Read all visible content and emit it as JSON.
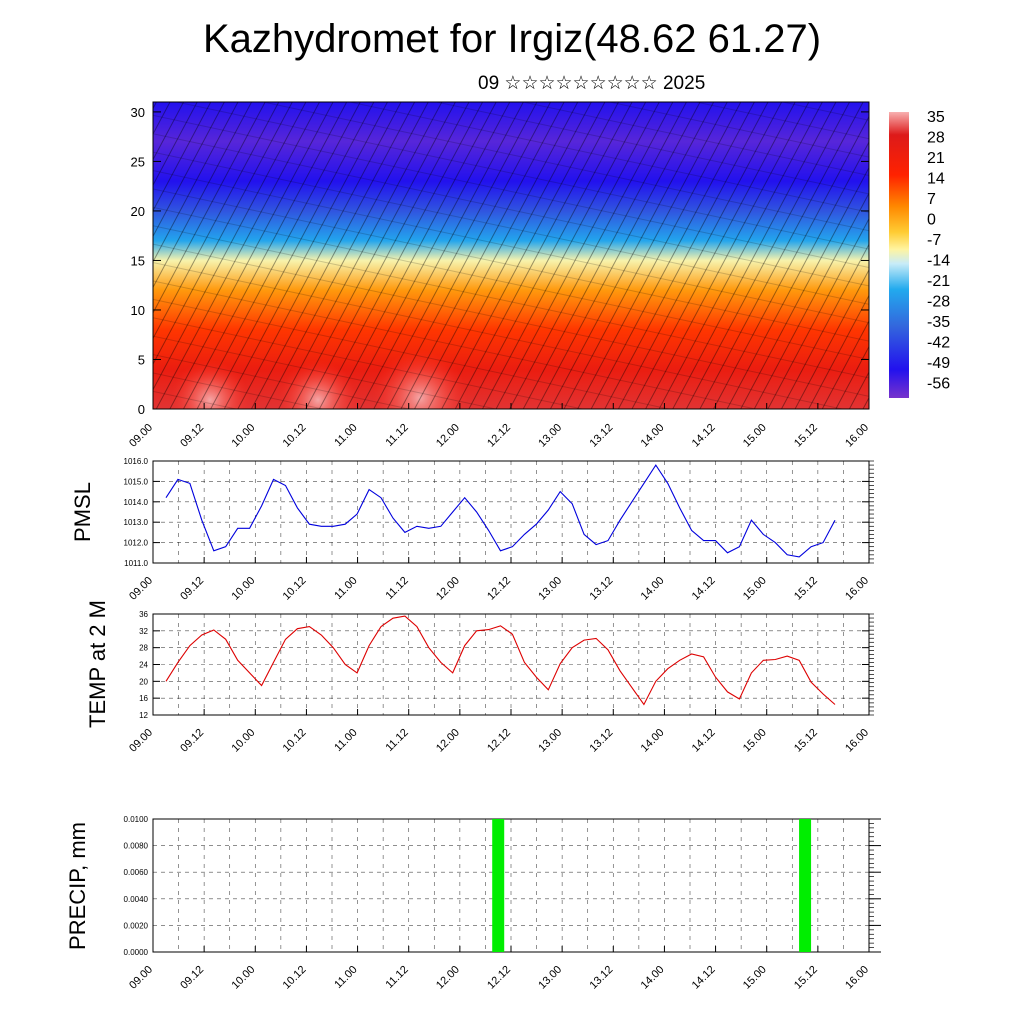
{
  "header": {
    "title": "Kazhydromet for Irgiz(48.62 61.27)",
    "subtitle": "09 ☆☆☆☆☆☆☆☆☆ 2025"
  },
  "colors": {
    "pmsl_line": "#0000dd",
    "temp_line": "#dd0000",
    "precip_bar": "#00ee00",
    "grid": "#000000"
  },
  "chart_data": [
    {
      "type": "heatmap",
      "name": "temperature-cross-section",
      "ylim": [
        0,
        31
      ],
      "yticks": [
        0,
        5,
        10,
        15,
        20,
        25,
        30
      ],
      "xticks": [
        "09.00",
        "09.12",
        "10.00",
        "10.12",
        "11.00",
        "11.12",
        "12.00",
        "12.12",
        "13.00",
        "13.12",
        "14.00",
        "14.12",
        "15.00",
        "15.12",
        "16.00"
      ],
      "colorbar": {
        "labels": [
          "35",
          "28",
          "21",
          "14",
          "7",
          "0",
          "-7",
          "-14",
          "-21",
          "-28",
          "-35",
          "-42",
          "-49",
          "-56"
        ],
        "max": 38,
        "min": -60
      },
      "bands": [
        {
          "level": 0,
          "value": 33
        },
        {
          "level": 4,
          "value": 28
        },
        {
          "level": 8,
          "value": 20
        },
        {
          "level": 12,
          "value": 10
        },
        {
          "level": 15,
          "value": -8
        },
        {
          "level": 17,
          "value": -25
        },
        {
          "level": 20,
          "value": -40
        },
        {
          "level": 23,
          "value": -52
        },
        {
          "level": 27,
          "value": -57
        },
        {
          "level": 31,
          "value": -52
        }
      ]
    },
    {
      "type": "line",
      "name": "pmsl",
      "ylabel": "PMSL",
      "ylim": [
        1011.0,
        1016.0
      ],
      "yticks": [
        "1011.0",
        "1012.0",
        "1013.0",
        "1014.0",
        "1015.0",
        "1016.0"
      ],
      "xticks": [
        "09.00",
        "09.12",
        "10.00",
        "10.12",
        "11.00",
        "11.12",
        "12.00",
        "12.12",
        "13.00",
        "13.12",
        "14.00",
        "14.12",
        "15.00",
        "15.12",
        "16.00"
      ],
      "values": [
        1014.2,
        1015.1,
        1014.9,
        1013.1,
        1011.6,
        1011.8,
        1012.7,
        1012.7,
        1013.8,
        1015.1,
        1014.8,
        1013.7,
        1012.9,
        1012.8,
        1012.8,
        1012.9,
        1013.4,
        1014.6,
        1014.2,
        1013.2,
        1012.5,
        1012.8,
        1012.7,
        1012.8,
        1013.5,
        1014.2,
        1013.5,
        1012.6,
        1011.6,
        1011.8,
        1012.4,
        1012.9,
        1013.6,
        1014.5,
        1013.9,
        1012.4,
        1011.9,
        1012.1,
        1013.1,
        1014.0,
        1014.9,
        1015.8,
        1014.9,
        1013.7,
        1012.6,
        1012.1,
        1012.1,
        1011.5,
        1011.8,
        1013.1,
        1012.4,
        1012.0,
        1011.4,
        1011.3,
        1011.8,
        1012.0,
        1013.1
      ]
    },
    {
      "type": "line",
      "name": "temp-2m",
      "ylabel": "TEMP at 2 M",
      "ylim": [
        12,
        36
      ],
      "yticks": [
        "12",
        "16",
        "20",
        "24",
        "28",
        "32",
        "36"
      ],
      "xticks": [
        "09.00",
        "09.12",
        "10.00",
        "10.12",
        "11.00",
        "11.12",
        "12.00",
        "12.12",
        "13.00",
        "13.12",
        "14.00",
        "14.12",
        "15.00",
        "15.12",
        "16.00"
      ],
      "values": [
        20.0,
        24.5,
        28.5,
        31.0,
        32.2,
        30.0,
        25.0,
        22.0,
        19.0,
        24.5,
        30.0,
        32.5,
        33.0,
        31.0,
        28.0,
        24.0,
        22.0,
        28.5,
        33.0,
        35.0,
        35.5,
        33.0,
        28.0,
        24.5,
        22.0,
        28.5,
        32.0,
        32.3,
        33.2,
        31.2,
        24.5,
        21.0,
        18.0,
        24.2,
        28.0,
        29.8,
        30.2,
        27.5,
        22.5,
        18.5,
        14.5,
        20.0,
        23.0,
        25.0,
        26.5,
        25.8,
        21.0,
        17.5,
        15.8,
        22.0,
        25.0,
        25.2,
        26.0,
        25.0,
        19.8,
        17.0,
        14.5
      ]
    },
    {
      "type": "bar",
      "name": "precip",
      "ylabel": "PRECIP, mm",
      "ylim": [
        0,
        0.01
      ],
      "yticks": [
        "0.0000",
        "0.0020",
        "0.0040",
        "0.0060",
        "0.0080",
        "0.0100"
      ],
      "xticks": [
        "09.00",
        "09.12",
        "10.00",
        "10.12",
        "11.00",
        "11.12",
        "12.00",
        "12.12",
        "13.00",
        "13.12",
        "14.00",
        "14.12",
        "15.00",
        "15.12",
        "16.00"
      ],
      "x_hours": [
        81,
        153
      ],
      "values": [
        0.01,
        0.01
      ]
    }
  ]
}
